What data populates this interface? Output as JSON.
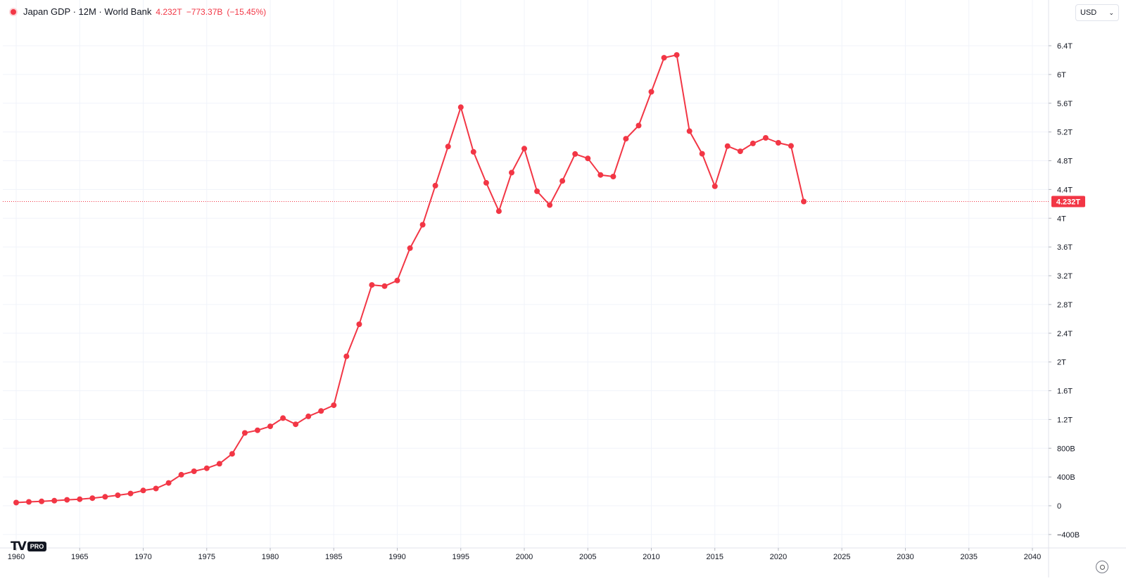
{
  "legend": {
    "symbol_label": "Japan GDP · 12M · World Bank",
    "last_value": "4.232T",
    "change": "−773.37B",
    "change_pct": "(−15.45%)",
    "accent": "#f23645"
  },
  "toolbar": {
    "currency": "USD",
    "currency_icon": "chevron-down-icon",
    "settings_icon": "gear-icon"
  },
  "branding": {
    "logo": "TV",
    "badge": "PRO"
  },
  "last_price_label": "4.232T",
  "colors": {
    "series": "#f23645",
    "grid": "#f0f3fa",
    "axis_text": "#131722",
    "price_label_bg": "#f23645"
  },
  "chart_data": {
    "type": "line",
    "title": "Japan GDP · 12M · World Bank",
    "xlim": [
      1959.5,
      2041
    ],
    "ylim": [
      -500,
      6750
    ],
    "x_ticks": [
      "1960",
      "1965",
      "1970",
      "1975",
      "1980",
      "1985",
      "1990",
      "1995",
      "2000",
      "2005",
      "2010",
      "2015",
      "2020",
      "2025",
      "2030",
      "2035",
      "2040"
    ],
    "y_ticks": [
      {
        "v": 6400,
        "label": "6.4T"
      },
      {
        "v": 6000,
        "label": "6T"
      },
      {
        "v": 5600,
        "label": "5.6T"
      },
      {
        "v": 5200,
        "label": "5.2T"
      },
      {
        "v": 4800,
        "label": "4.8T"
      },
      {
        "v": 4400,
        "label": "4.4T"
      },
      {
        "v": 4000,
        "label": "4T"
      },
      {
        "v": 3600,
        "label": "3.6T"
      },
      {
        "v": 3200,
        "label": "3.2T"
      },
      {
        "v": 2800,
        "label": "2.8T"
      },
      {
        "v": 2400,
        "label": "2.4T"
      },
      {
        "v": 2000,
        "label": "2T"
      },
      {
        "v": 1600,
        "label": "1.6T"
      },
      {
        "v": 1200,
        "label": "1.2T"
      },
      {
        "v": 800,
        "label": "800B"
      },
      {
        "v": 400,
        "label": "400B"
      },
      {
        "v": 0,
        "label": "0"
      },
      {
        "v": -400,
        "label": "−400B"
      }
    ],
    "unit": "billion USD",
    "series": [
      {
        "color": "#f23645",
        "x": [
          1960,
          1961,
          1962,
          1963,
          1964,
          1965,
          1966,
          1967,
          1968,
          1969,
          1970,
          1971,
          1972,
          1973,
          1974,
          1975,
          1976,
          1977,
          1978,
          1979,
          1980,
          1981,
          1982,
          1983,
          1984,
          1985,
          1986,
          1987,
          1988,
          1989,
          1990,
          1991,
          1992,
          1993,
          1994,
          1995,
          1996,
          1997,
          1998,
          1999,
          2000,
          2001,
          2002,
          2003,
          2004,
          2005,
          2006,
          2007,
          2008,
          2009,
          2010,
          2011,
          2012,
          2013,
          2014,
          2015,
          2016,
          2017,
          2018,
          2019,
          2020,
          2021,
          2022
        ],
        "values": [
          44,
          54,
          61,
          70,
          82,
          91,
          106,
          124,
          146,
          170,
          212,
          240,
          317,
          432,
          480,
          522,
          584,
          722,
          1013,
          1050,
          1105,
          1219,
          1133,
          1244,
          1318,
          1398,
          2079,
          2525,
          3072,
          3055,
          3133,
          3584,
          3909,
          4454,
          4998,
          5545,
          4923,
          4493,
          4098,
          4635,
          4968,
          4375,
          4183,
          4519,
          4894,
          4832,
          4602,
          4580,
          5106,
          5289,
          5759,
          6233,
          6272,
          5212,
          4897,
          4445,
          5004,
          4931,
          5041,
          5118,
          5050,
          5006,
          4232
        ]
      }
    ],
    "last_value": 4232,
    "legend_position": "top-left",
    "grid": true,
    "y_axis_side": "right"
  }
}
